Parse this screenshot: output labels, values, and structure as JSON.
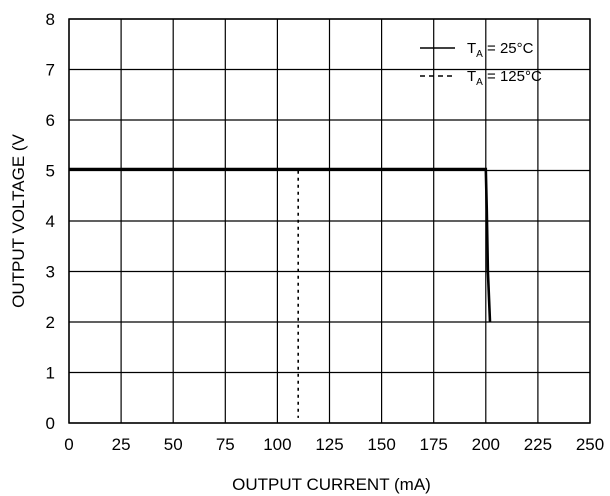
{
  "chart_data": {
    "type": "line",
    "xlabel": "OUTPUT CURRENT  (mA)",
    "ylabel": "OUTPUT VOLTAGE  (V",
    "xlim": [
      0,
      250
    ],
    "ylim": [
      0,
      8
    ],
    "xticks": [
      0,
      25,
      50,
      75,
      100,
      125,
      150,
      175,
      200,
      225,
      250
    ],
    "yticks": [
      0,
      1,
      2,
      3,
      4,
      5,
      6,
      7,
      8
    ],
    "grid": true,
    "legend_position": "top-right",
    "series": [
      {
        "name_main": "T",
        "name_sub": "A",
        "name_rest": " = 25°C",
        "style": "solid",
        "x": [
          0,
          200,
          200.5,
          201,
          202
        ],
        "y": [
          5.03,
          5.03,
          4.2,
          3.0,
          2.0
        ]
      },
      {
        "name_main": "T",
        "name_sub": "A",
        "name_rest": " = 125°C",
        "style": "dashed",
        "x": [
          0,
          110,
          110
        ],
        "y": [
          5.03,
          5.03,
          0.1
        ]
      }
    ]
  }
}
